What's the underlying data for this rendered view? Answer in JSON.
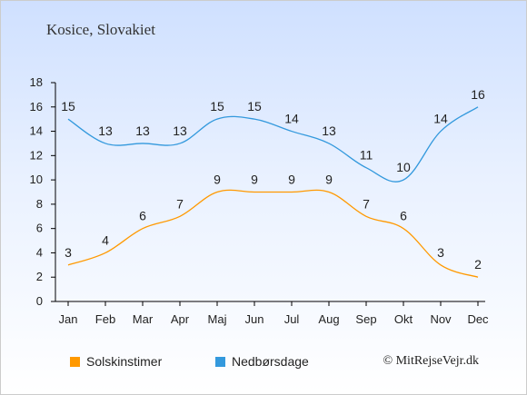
{
  "chart_data": {
    "type": "line",
    "title": "Kosice, Slovakiet",
    "categories": [
      "Jan",
      "Feb",
      "Mar",
      "Apr",
      "Maj",
      "Jun",
      "Jul",
      "Aug",
      "Sep",
      "Okt",
      "Nov",
      "Dec"
    ],
    "ylim": [
      0,
      18
    ],
    "yticks": [
      0,
      2,
      4,
      6,
      8,
      10,
      12,
      14,
      16,
      18
    ],
    "grid": false,
    "legend_position": "bottom",
    "series": [
      {
        "name": "Solskinstimer",
        "color": "#ff9900",
        "values": [
          3,
          4,
          6,
          7,
          9,
          9,
          9,
          9,
          7,
          6,
          3,
          2
        ]
      },
      {
        "name": "Nedbørsdage",
        "color": "#3399dd",
        "values": [
          15,
          13,
          13,
          13,
          15,
          15,
          14,
          13,
          11,
          10,
          14,
          16
        ]
      }
    ]
  },
  "copyright": "© MitRejseVejr.dk"
}
